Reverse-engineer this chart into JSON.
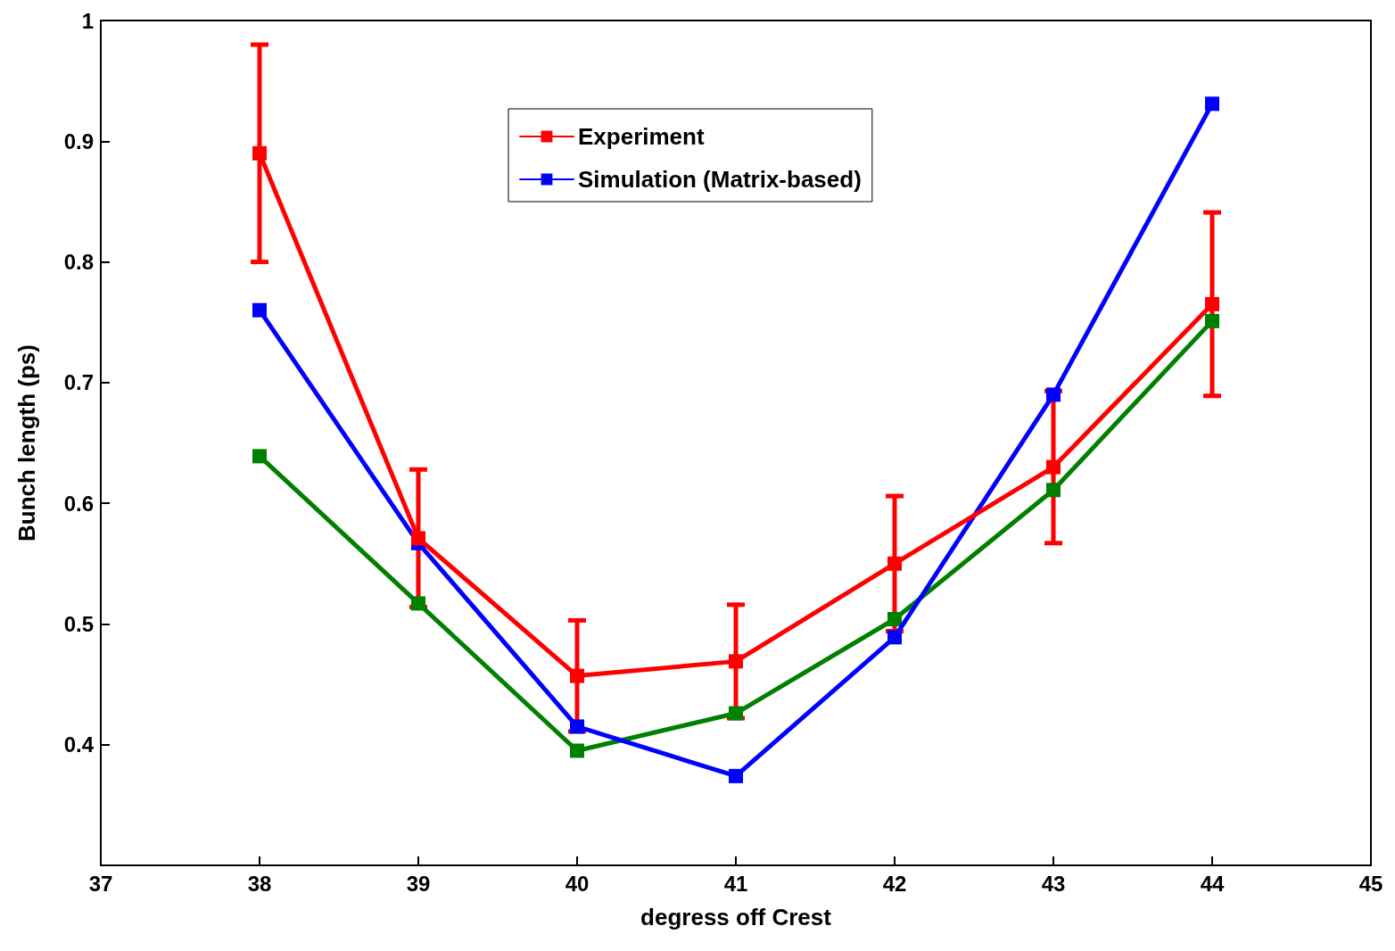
{
  "chart_data": {
    "type": "line",
    "xlabel": "degress off Crest",
    "ylabel": "Bunch length (ps)",
    "x": [
      38,
      39,
      40,
      41,
      42,
      43,
      44
    ],
    "series": [
      {
        "name": "Experiment",
        "color": "#ff0000",
        "values": [
          0.89,
          0.571,
          0.457,
          0.469,
          0.55,
          0.63,
          0.765
        ],
        "errors": [
          0.09,
          0.057,
          0.046,
          0.047,
          0.056,
          0.063,
          0.076
        ]
      },
      {
        "name": "Simulation (Matrix-based)",
        "color": "#0000ff",
        "values": [
          0.76,
          0.567,
          0.415,
          0.374,
          0.489,
          0.69,
          0.931
        ]
      },
      {
        "color": "#008000",
        "values": [
          0.639,
          0.517,
          0.395,
          0.426,
          0.504,
          0.611,
          0.751
        ]
      }
    ],
    "xlim": [
      37,
      45
    ],
    "xticks": [
      37,
      38,
      39,
      40,
      41,
      42,
      43,
      44,
      45
    ],
    "ylim": [
      0.3,
      1
    ],
    "yticks": [
      0.4,
      0.5,
      0.6,
      0.7,
      0.8,
      0.9,
      {
        "value": 1,
        "label": "1"
      }
    ],
    "marker": "square",
    "line_style": "solid",
    "grid": false,
    "legend": "top"
  }
}
